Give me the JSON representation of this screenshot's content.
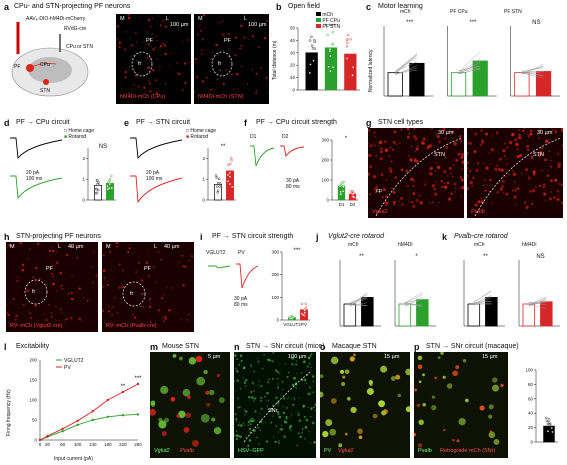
{
  "panels": {
    "a": {
      "letter": "a",
      "title": "CPu- and STN-projecting PF neurons",
      "virus": "AAV₈-DIO-hM4Di-mCherry",
      "retro": "RVdG-cre",
      "cpu_or_stn": "CPu or STN",
      "pf": "PF",
      "cpu": "CPu",
      "stn": "STN",
      "img1": {
        "label": "hM4Di-mCh (CPu)",
        "region": "PF",
        "fr": "fr",
        "m": "M",
        "l": "L",
        "scale": "100 µm"
      },
      "img2": {
        "label": "hM4Di-mCh (STN)",
        "region": "PF",
        "fr": "fr",
        "m": "M",
        "l": "L",
        "scale": "100 µm"
      }
    },
    "b": {
      "letter": "b",
      "title": "Open field",
      "legend": [
        "mCh",
        "PF CPu",
        "PF STN"
      ],
      "ylabel": "Total distance (m)",
      "sig": [
        "*",
        "***"
      ],
      "yticks": [
        "0",
        "10",
        "20",
        "30",
        "40",
        "50"
      ]
    },
    "c": {
      "letter": "c",
      "title": "Motor learning",
      "sub": [
        "mCh",
        "PF CPu",
        "PF STN"
      ],
      "sig": [
        "***",
        "***",
        "NS"
      ],
      "ylabel": "Normalized latency",
      "days": [
        "Day 1",
        "Day 2"
      ]
    },
    "d": {
      "letter": "d",
      "title": "PF → CPu circuit",
      "legend": [
        "Home cage",
        "Rotarod"
      ],
      "scale": "20 pA\n100 ms",
      "sig": "NS",
      "ylabel": "AMPA/NMDA ratio"
    },
    "e": {
      "letter": "e",
      "title": "PF → STN circuit",
      "legend": [
        "Home cage",
        "Rotarod"
      ],
      "scale": "20 pA\n100 ms",
      "sig": "**",
      "ylabel": "AMPA/NMDA ratio"
    },
    "f": {
      "letter": "f",
      "title": "PF → CPu circuit strength",
      "d1": "D1",
      "d2": "D2",
      "sig": "*",
      "ylabel": "Amplitude (pA)",
      "scale": "30 pA\n80 ms",
      "yticks": [
        "0",
        "100",
        "200",
        "300"
      ]
    },
    "g": {
      "letter": "g",
      "title": "STN cell types",
      "scale": "30 µm",
      "stn": "STN",
      "cp": "cp",
      "lbl1": "Vglut2",
      "lbl2": "Pvalb"
    },
    "h": {
      "letter": "h",
      "title": "STN-projecting PF neurons",
      "m": "M",
      "l": "L",
      "scale": "40 µm",
      "pf": "PF",
      "fr": "fr",
      "lbl1": "RV–mCh (Vglut2-cre)",
      "lbl2": "RV–mCh (Pvalb-cre)"
    },
    "i": {
      "letter": "i",
      "title": "PF → STN circuit strength",
      "vglut": "VGLUT2",
      "pv": "PV",
      "sig": "***",
      "ylabel": "Amplitude (pA)",
      "scale": "30 pA\n80 ms"
    },
    "j": {
      "letter": "j",
      "title": "Vglut2-cre rotarod",
      "sub": [
        "mCh",
        "hM4Di"
      ],
      "sig": [
        "**",
        "*"
      ],
      "ylabel": "Normalized latency",
      "days": [
        "Day 1",
        "Day 2"
      ]
    },
    "k": {
      "letter": "k",
      "title": "Pvalb-cre rotarod",
      "sub": [
        "mCh",
        "hM4Di"
      ],
      "sig": [
        "**",
        "NS"
      ],
      "ylabel": "Normalized latency",
      "days": [
        "Day 1",
        "Day 2"
      ]
    },
    "l": {
      "letter": "l",
      "title": "Excitability",
      "legend": [
        "VGLUT2",
        "PV"
      ],
      "ylabel": "Firing frequency (Hz)",
      "xlabel": "Input current (pA)",
      "sig": [
        "**",
        "***"
      ]
    },
    "m": {
      "letter": "m",
      "title": "Mouse STN",
      "scale": "5 µm",
      "lbl1": "Vglut2",
      "lbl2": "Pvalb"
    },
    "n": {
      "letter": "n",
      "title": "STN → SNr circuit (mice)",
      "scale": "100 µm",
      "snr": "SNr",
      "lbl": "HSV–GFP"
    },
    "o": {
      "letter": "o",
      "title": "Macaque STN",
      "scale": "15 µm",
      "lbl1": "PV",
      "lbl2": "Vglut2"
    },
    "p": {
      "letter": "p",
      "title": "STN → SNr circuit (macaque)",
      "scale": "15 µm",
      "lbl1": "Pvalb",
      "lbl2": "Retrograde mCh (SNr)",
      "ylabel": "Pvalb⁺ of mCh⁺ cells (%)",
      "yticks": [
        "0",
        "20",
        "40",
        "60",
        "80",
        "100"
      ]
    }
  },
  "chart_data": [
    {
      "type": "bar",
      "panel": "b",
      "categories": [
        "mCh",
        "PF CPu",
        "PF STN"
      ],
      "values": [
        30,
        34,
        29
      ],
      "ylim": [
        0,
        50
      ],
      "ylabel": "Total distance (m)"
    },
    {
      "type": "line",
      "panel": "l",
      "title": "Excitability",
      "xlabel": "Input current (pA)",
      "ylabel": "Firing frequency (Hz)",
      "x": [
        0,
        20,
        60,
        100,
        140,
        180,
        220,
        260
      ],
      "ylim": [
        0,
        200
      ],
      "series": [
        {
          "name": "VGLUT2",
          "color": "#2ca02c",
          "values": [
            0,
            8,
            22,
            38,
            50,
            58,
            62,
            64
          ]
        },
        {
          "name": "PV",
          "color": "#d62728",
          "values": [
            0,
            10,
            28,
            48,
            72,
            100,
            120,
            140
          ]
        }
      ]
    },
    {
      "type": "bar",
      "panel": "f",
      "categories": [
        "D1",
        "D2"
      ],
      "values": [
        70,
        30
      ],
      "ylim": [
        0,
        300
      ],
      "ylabel": "Amplitude (pA)"
    },
    {
      "type": "bar",
      "panel": "i",
      "categories": [
        "VGLUT2",
        "PV"
      ],
      "values": [
        10,
        45
      ],
      "ylim": [
        0,
        300
      ],
      "ylabel": "Amplitude (pA)"
    },
    {
      "type": "bar",
      "panel": "p",
      "categories": [
        "Pvalb"
      ],
      "values": [
        22
      ],
      "ylim": [
        0,
        100
      ],
      "ylabel": "Pvalb⁺ of mCh⁺ cells (%)"
    }
  ],
  "colors": {
    "mch": "#000000",
    "cpu": "#2ca02c",
    "stn": "#d62728",
    "red": "#e0241b",
    "green": "#3aa03a"
  }
}
